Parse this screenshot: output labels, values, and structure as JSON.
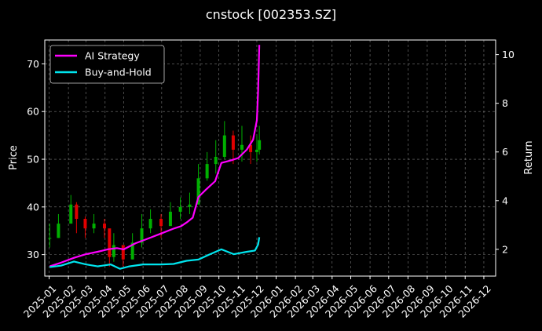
{
  "chart_data": {
    "type": "line",
    "title": "cnstock [002353.SZ]",
    "xlabel": "",
    "ylabel": "Price",
    "y2label": "Return",
    "x_tick_labels": [
      "2025-01",
      "2025-02",
      "2025-03",
      "2025-04",
      "2025-05",
      "2025-06",
      "2025-07",
      "2025-08",
      "2025-09",
      "2025-10",
      "2025-11",
      "2025-12",
      "2026-01",
      "2026-02",
      "2026-03",
      "2026-04",
      "2026-05",
      "2026-06",
      "2026-07",
      "2026-08",
      "2026-09",
      "2026-10",
      "2026-11",
      "2026-12"
    ],
    "xlim": [
      "2024-12-25",
      "2026-12-20"
    ],
    "ylim": [
      25.5,
      75
    ],
    "y_ticks": [
      30,
      40,
      50,
      60,
      70
    ],
    "y2lim": [
      0.9,
      10.6
    ],
    "y2_ticks": [
      2,
      4,
      6,
      8,
      10
    ],
    "grid": true,
    "legend_position": "top-left",
    "candlestick": {
      "up_color": "#00b000",
      "down_color": "#e00000",
      "dates": [
        "2025-01-02",
        "2025-01-16",
        "2025-02-05",
        "2025-02-14",
        "2025-02-28",
        "2025-03-14",
        "2025-03-31",
        "2025-04-08",
        "2025-04-15",
        "2025-04-30",
        "2025-05-15",
        "2025-05-30",
        "2025-06-13",
        "2025-06-30",
        "2025-07-15",
        "2025-07-31",
        "2025-08-15",
        "2025-08-29",
        "2025-09-12",
        "2025-09-26",
        "2025-10-10",
        "2025-10-24",
        "2025-11-07",
        "2025-11-21",
        "2025-12-01",
        "2025-12-05"
      ],
      "close": [
        33.5,
        36.5,
        40.5,
        37.5,
        35.5,
        36.5,
        35.5,
        29.5,
        32.0,
        29.0,
        32.5,
        35.5,
        37.5,
        36.0,
        39.0,
        40.0,
        40.5,
        46.0,
        49.0,
        50.5,
        55.0,
        52.0,
        53.0,
        51.5,
        52.0,
        54.0
      ],
      "high": [
        36.5,
        38.5,
        42.5,
        41.0,
        38.0,
        38.5,
        37.5,
        34.0,
        34.5,
        32.0,
        34.5,
        38.5,
        39.5,
        38.5,
        41.0,
        42.0,
        43.0,
        49.0,
        51.5,
        54.0,
        58.0,
        56.0,
        57.0,
        55.0,
        55.0,
        57.0
      ],
      "low": [
        31.5,
        33.5,
        37.0,
        34.5,
        33.5,
        34.5,
        33.5,
        27.5,
        28.5,
        27.5,
        29.0,
        31.5,
        34.5,
        33.5,
        36.0,
        37.5,
        38.5,
        41.0,
        45.5,
        47.0,
        50.0,
        49.0,
        49.5,
        49.0,
        49.5,
        51.0
      ]
    },
    "series": [
      {
        "name": "AI Strategy",
        "axis": "right",
        "color": "#ff00ff",
        "x": [
          "2025-01-02",
          "2025-01-20",
          "2025-02-10",
          "2025-03-01",
          "2025-03-20",
          "2025-04-05",
          "2025-04-20",
          "2025-05-01",
          "2025-05-20",
          "2025-06-10",
          "2025-06-30",
          "2025-07-20",
          "2025-08-01",
          "2025-08-10",
          "2025-08-20",
          "2025-08-29",
          "2025-09-10",
          "2025-09-25",
          "2025-10-05",
          "2025-10-20",
          "2025-11-01",
          "2025-11-15",
          "2025-11-25",
          "2025-12-01",
          "2025-12-03",
          "2025-12-05"
        ],
        "values": [
          1.3,
          1.45,
          1.65,
          1.8,
          1.9,
          2.0,
          2.05,
          2.0,
          2.25,
          2.45,
          2.65,
          2.85,
          2.95,
          3.1,
          3.3,
          4.15,
          4.45,
          4.8,
          5.55,
          5.65,
          5.75,
          6.1,
          6.5,
          7.3,
          8.5,
          10.4
        ]
      },
      {
        "name": "Buy-and-Hold",
        "axis": "right",
        "color": "#00e5ee",
        "x": [
          "2025-01-02",
          "2025-01-20",
          "2025-02-10",
          "2025-03-01",
          "2025-03-20",
          "2025-04-10",
          "2025-04-25",
          "2025-05-10",
          "2025-06-01",
          "2025-06-30",
          "2025-07-20",
          "2025-08-10",
          "2025-08-29",
          "2025-09-15",
          "2025-10-05",
          "2025-10-25",
          "2025-11-15",
          "2025-11-28",
          "2025-12-03",
          "2025-12-05"
        ],
        "values": [
          1.27,
          1.33,
          1.5,
          1.38,
          1.3,
          1.38,
          1.2,
          1.3,
          1.38,
          1.38,
          1.4,
          1.53,
          1.58,
          1.78,
          2.0,
          1.8,
          1.9,
          1.95,
          2.2,
          2.5
        ]
      }
    ]
  }
}
